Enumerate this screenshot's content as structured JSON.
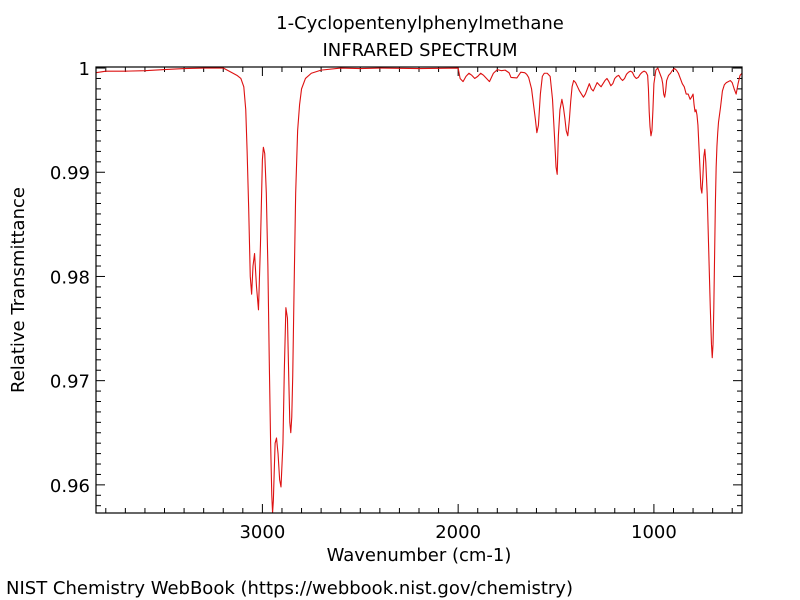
{
  "chart_data": {
    "type": "line",
    "title": "1-Cyclopentenylphenylmethane",
    "subtitle": "INFRARED SPECTRUM",
    "xlabel": "Wavenumber (cm-1)",
    "ylabel": "Relative Transmittance",
    "x_reversed": true,
    "xlim": [
      3850,
      550
    ],
    "ylim": [
      0.9573,
      1.0001
    ],
    "x_ticks": [
      3000,
      2000,
      1000
    ],
    "x_tick_labels": [
      "3000",
      "2000",
      "1000"
    ],
    "y_ticks": [
      1,
      0.99,
      0.98,
      0.97,
      0.96
    ],
    "y_tick_labels": [
      "1",
      "0.99",
      "0.98",
      "0.97",
      "0.96"
    ],
    "line_color": "#dd1111",
    "series": [
      {
        "x": [
          3850,
          3800,
          3700,
          3600,
          3500,
          3400,
          3300,
          3200,
          3150,
          3130,
          3110,
          3095,
          3085,
          3078,
          3070,
          3062,
          3055,
          3048,
          3040,
          3030,
          3020,
          3010,
          3000,
          2995,
          2988,
          2980,
          2972,
          2965,
          2958,
          2952,
          2948,
          2944,
          2940,
          2935,
          2928,
          2920,
          2912,
          2905,
          2895,
          2888,
          2880,
          2872,
          2865,
          2860,
          2855,
          2850,
          2845,
          2838,
          2830,
          2820,
          2810,
          2800,
          2780,
          2750,
          2700,
          2600,
          2500,
          2400,
          2200,
          2000,
          1990,
          1975,
          1960,
          1945,
          1930,
          1915,
          1900,
          1885,
          1870,
          1855,
          1840,
          1820,
          1800,
          1780,
          1760,
          1740,
          1730,
          1700,
          1680,
          1660,
          1650,
          1640,
          1625,
          1615,
          1605,
          1598,
          1590,
          1580,
          1570,
          1560,
          1545,
          1530,
          1518,
          1508,
          1500,
          1494,
          1488,
          1480,
          1470,
          1462,
          1455,
          1448,
          1440,
          1432,
          1425,
          1418,
          1410,
          1400,
          1390,
          1380,
          1370,
          1360,
          1350,
          1340,
          1330,
          1320,
          1310,
          1300,
          1290,
          1280,
          1270,
          1260,
          1250,
          1240,
          1230,
          1220,
          1210,
          1200,
          1190,
          1180,
          1170,
          1160,
          1150,
          1140,
          1130,
          1120,
          1110,
          1100,
          1090,
          1080,
          1070,
          1060,
          1050,
          1040,
          1032,
          1028,
          1024,
          1020,
          1015,
          1010,
          1005,
          1000,
          990,
          980,
          970,
          960,
          955,
          950,
          945,
          940,
          935,
          925,
          915,
          905,
          895,
          885,
          875,
          865,
          855,
          845,
          835,
          825,
          815,
          808,
          800,
          795,
          790,
          785,
          780,
          775,
          770,
          765,
          760,
          755,
          750,
          745,
          740,
          735,
          728,
          720,
          712,
          706,
          702,
          698,
          694,
          690,
          686,
          682,
          678,
          674,
          670,
          665,
          660,
          655,
          650,
          640,
          630,
          620,
          610,
          600,
          590,
          580,
          570,
          560,
          550
        ],
        "y": [
          0.99955,
          0.9997,
          0.9997,
          0.99975,
          0.99985,
          0.99995,
          1.0,
          1.0,
          0.9995,
          0.9993,
          0.999,
          0.9982,
          0.996,
          0.992,
          0.9865,
          0.98,
          0.9783,
          0.981,
          0.9822,
          0.979,
          0.9768,
          0.983,
          0.9912,
          0.9924,
          0.9918,
          0.988,
          0.981,
          0.972,
          0.964,
          0.959,
          0.9573,
          0.9585,
          0.961,
          0.964,
          0.9645,
          0.963,
          0.9605,
          0.9598,
          0.964,
          0.971,
          0.977,
          0.976,
          0.97,
          0.966,
          0.965,
          0.9665,
          0.9705,
          0.979,
          0.988,
          0.994,
          0.9965,
          0.998,
          0.999,
          0.9995,
          0.9998,
          1.0,
          0.99995,
          1.0,
          0.99995,
          1.0,
          0.999,
          0.9987,
          0.9992,
          0.9995,
          0.9993,
          0.999,
          0.9992,
          0.9995,
          0.9993,
          0.999,
          0.9987,
          0.9995,
          0.99985,
          0.99975,
          0.9998,
          0.99955,
          0.9991,
          0.99905,
          0.9996,
          0.99955,
          0.9994,
          0.9991,
          0.998,
          0.9965,
          0.995,
          0.9938,
          0.9945,
          0.9975,
          0.9992,
          0.9995,
          0.9995,
          0.9992,
          0.997,
          0.9935,
          0.9905,
          0.9898,
          0.9935,
          0.996,
          0.997,
          0.9962,
          0.9952,
          0.994,
          0.9935,
          0.995,
          0.9968,
          0.9982,
          0.9988,
          0.9986,
          0.9982,
          0.9978,
          0.9975,
          0.9972,
          0.9975,
          0.998,
          0.9985,
          0.998,
          0.9978,
          0.9982,
          0.9986,
          0.9984,
          0.9982,
          0.9985,
          0.9988,
          0.999,
          0.9987,
          0.9983,
          0.9985,
          0.999,
          0.9992,
          0.9993,
          0.999,
          0.9988,
          0.999,
          0.9994,
          0.9996,
          0.9997,
          0.9996,
          0.9992,
          0.999,
          0.9991,
          0.9994,
          0.9996,
          0.9997,
          0.9996,
          0.9993,
          0.998,
          0.9958,
          0.9944,
          0.9935,
          0.994,
          0.996,
          0.9985,
          0.9998,
          1.0,
          0.9995,
          0.999,
          0.9985,
          0.9975,
          0.9972,
          0.9978,
          0.9988,
          0.9993,
          0.9995,
          0.9998,
          0.99995,
          0.9998,
          0.9995,
          0.999,
          0.9985,
          0.9982,
          0.9975,
          0.9975,
          0.997,
          0.9972,
          0.9975,
          0.9965,
          0.9958,
          0.996,
          0.9955,
          0.9945,
          0.9925,
          0.9905,
          0.9885,
          0.988,
          0.9895,
          0.9915,
          0.9922,
          0.991,
          0.988,
          0.9825,
          0.977,
          0.9735,
          0.9722,
          0.9735,
          0.977,
          0.982,
          0.987,
          0.9905,
          0.9925,
          0.9938,
          0.9948,
          0.9955,
          0.9962,
          0.997,
          0.9978,
          0.9984,
          0.9986,
          0.9987,
          0.9988,
          0.9986,
          0.998,
          0.9975,
          0.9985,
          0.9993,
          0.9995
        ]
      }
    ]
  },
  "footer": "NIST Chemistry WebBook (https://webbook.nist.gov/chemistry)"
}
